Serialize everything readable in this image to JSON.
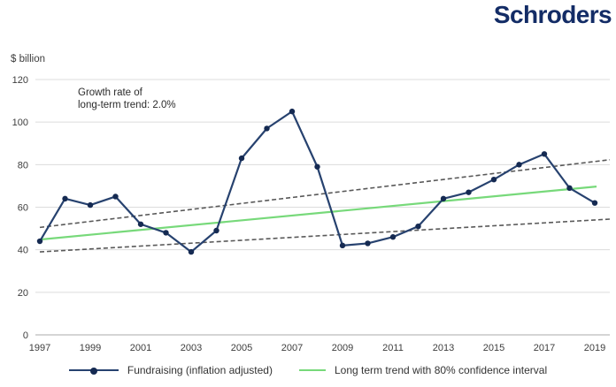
{
  "logo": {
    "text": "Schroders",
    "color": "#132c66"
  },
  "chart_data": {
    "type": "line",
    "title": "",
    "y_axis_label": "$ billion",
    "ylim": [
      0,
      120
    ],
    "y_ticks": [
      0,
      20,
      40,
      60,
      80,
      100,
      120
    ],
    "grid": "horizontal",
    "x_tick_years": [
      1997,
      1999,
      2001,
      2003,
      2005,
      2007,
      2009,
      2011,
      2013,
      2015,
      2017,
      2019
    ],
    "years": [
      1997,
      1998,
      1999,
      2000,
      2001,
      2002,
      2003,
      2004,
      2005,
      2006,
      2007,
      2008,
      2009,
      2010,
      2011,
      2012,
      2013,
      2014,
      2015,
      2016,
      2017,
      2018,
      2019
    ],
    "annotation": {
      "line1": "Growth rate of",
      "line2": "long-term trend: 2.0%"
    },
    "series": [
      {
        "name": "Fundraising (inflation adjusted)",
        "type": "line+marker",
        "color": "#27426f",
        "marker_color": "#152a52",
        "values": [
          44,
          64,
          61,
          65,
          52,
          48,
          39,
          49,
          83,
          97,
          105,
          79,
          42,
          43,
          46,
          51,
          64,
          67,
          73,
          80,
          85,
          69,
          62
        ]
      },
      {
        "name": "Long term trend",
        "type": "line",
        "color": "#77d97a",
        "growth_rate_pct": 2.0,
        "start_year": 1997,
        "start_value": 44.8,
        "end_year": 2019,
        "end_value": 69.7
      }
    ],
    "confidence_interval": {
      "level_pct": 80,
      "color": "#595959",
      "upper": {
        "start_value": 50.5,
        "end_value": 82.3
      },
      "lower": {
        "start_value": 39.0,
        "end_value": 54.4
      }
    },
    "legend": [
      {
        "label": "Fundraising (inflation adjusted)",
        "marker": "line-dot",
        "color": "#27426f",
        "dot_color": "#152a52"
      },
      {
        "label": "Long term trend with 80% confidence interval",
        "marker": "line",
        "color": "#77d97a"
      }
    ],
    "colors": {
      "gridline": "#dcdcdc",
      "baseline": "#ababab",
      "tick_text": "#3d3d3d"
    }
  }
}
